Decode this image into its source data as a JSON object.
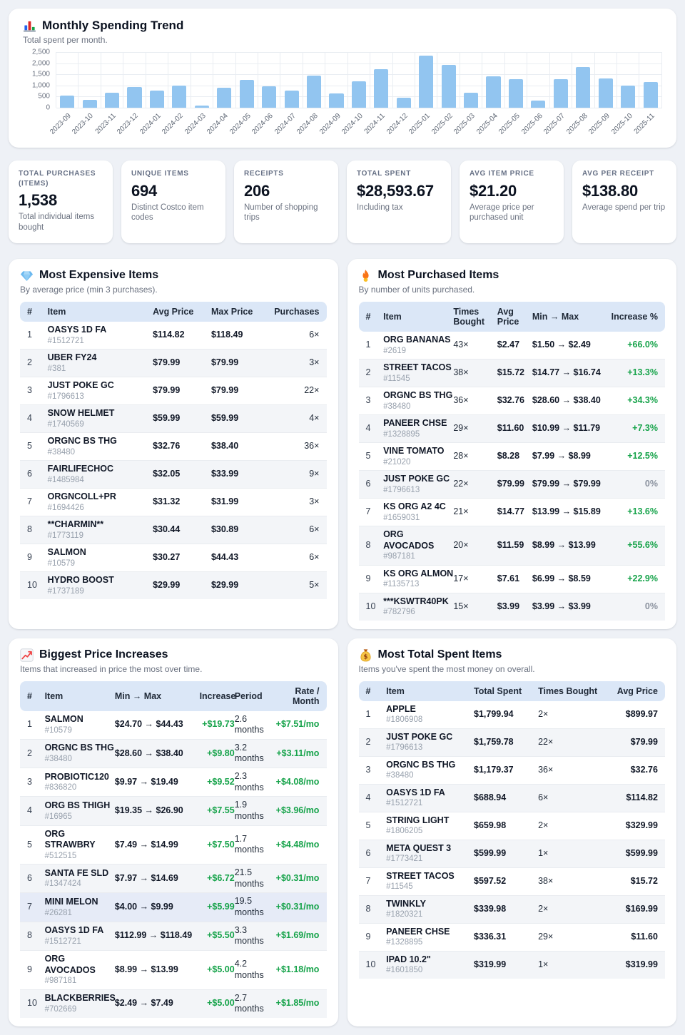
{
  "icons": {
    "chart": "bar-chart-icon",
    "expensive": "gem-icon",
    "purchased": "fire-icon",
    "increases": "chart-up-icon",
    "total": "money-bag-icon"
  },
  "colors": {
    "bar": "#92c5f0",
    "positive": "#16a34a",
    "neutral": "#8a919e",
    "header_bg": "#dbe7f7"
  },
  "chart_data": {
    "type": "bar",
    "title": "Monthly Spending Trend",
    "subtitle": "Total spent per month.",
    "x": [
      "2023-09",
      "2023-10",
      "2023-11",
      "2023-12",
      "2024-01",
      "2024-02",
      "2024-03",
      "2024-04",
      "2024-05",
      "2024-06",
      "2024-07",
      "2024-08",
      "2024-09",
      "2024-10",
      "2024-11",
      "2024-12",
      "2025-01",
      "2025-02",
      "2025-03",
      "2025-04",
      "2025-05",
      "2025-06",
      "2025-07",
      "2025-08",
      "2025-09",
      "2025-10",
      "2025-11"
    ],
    "values": [
      560,
      340,
      660,
      930,
      780,
      980,
      100,
      910,
      1240,
      950,
      780,
      1440,
      640,
      1190,
      1720,
      440,
      2350,
      1930,
      670,
      1420,
      1270,
      330,
      1290,
      1830,
      1330,
      1010,
      1170
    ],
    "xlabel": "",
    "ylabel": "",
    "ylim": [
      0,
      2500
    ],
    "yticks": [
      "2,500",
      "2,000",
      "1,500",
      "1,000",
      "500",
      "0"
    ],
    "grid": true,
    "legend": false,
    "bar_color": "#92c5f0"
  },
  "stats": [
    {
      "label": "TOTAL PURCHASES (ITEMS)",
      "value": "1,538",
      "desc": "Total individual items bought"
    },
    {
      "label": "UNIQUE ITEMS",
      "value": "694",
      "desc": "Distinct Costco item codes"
    },
    {
      "label": "RECEIPTS",
      "value": "206",
      "desc": "Number of shopping trips"
    },
    {
      "label": "TOTAL SPENT",
      "value": "$28,593.67",
      "desc": "Including tax"
    },
    {
      "label": "AVG ITEM PRICE",
      "value": "$21.20",
      "desc": "Average price per purchased unit"
    },
    {
      "label": "AVG PER RECEIPT",
      "value": "$138.80",
      "desc": "Average spend per trip"
    }
  ],
  "tables": {
    "expensive": {
      "title": "Most Expensive Items",
      "subtitle": "By average price (min 3 purchases).",
      "columns": [
        {
          "key": "rank",
          "label": "#",
          "kind": "rank",
          "align": "left"
        },
        {
          "key": "item",
          "label": "Item",
          "kind": "item",
          "align": "left"
        },
        {
          "key": "avg",
          "label": "Avg Price",
          "kind": "strong",
          "align": "left"
        },
        {
          "key": "max",
          "label": "Max Price",
          "kind": "strong",
          "align": "left"
        },
        {
          "key": "purchases",
          "label": "Purchases",
          "kind": "plain",
          "align": "right"
        }
      ],
      "rows": [
        {
          "rank": "1",
          "item": {
            "name": "OASYS 1D FA",
            "code": "#1512721"
          },
          "avg": "$114.82",
          "max": "$118.49",
          "purchases": "6×"
        },
        {
          "rank": "2",
          "item": {
            "name": "UBER FY24",
            "code": "#381"
          },
          "avg": "$79.99",
          "max": "$79.99",
          "purchases": "3×"
        },
        {
          "rank": "3",
          "item": {
            "name": "JUST POKE GC",
            "code": "#1796613"
          },
          "avg": "$79.99",
          "max": "$79.99",
          "purchases": "22×"
        },
        {
          "rank": "4",
          "item": {
            "name": "SNOW HELMET",
            "code": "#1740569"
          },
          "avg": "$59.99",
          "max": "$59.99",
          "purchases": "4×"
        },
        {
          "rank": "5",
          "item": {
            "name": "ORGNC BS THG",
            "code": "#38480"
          },
          "avg": "$32.76",
          "max": "$38.40",
          "purchases": "36×"
        },
        {
          "rank": "6",
          "item": {
            "name": "FAIRLIFECHOC",
            "code": "#1485984"
          },
          "avg": "$32.05",
          "max": "$33.99",
          "purchases": "9×"
        },
        {
          "rank": "7",
          "item": {
            "name": "ORGNCOLL+PR",
            "code": "#1694426"
          },
          "avg": "$31.32",
          "max": "$31.99",
          "purchases": "3×"
        },
        {
          "rank": "8",
          "item": {
            "name": "**CHARMIN**",
            "code": "#1773119"
          },
          "avg": "$30.44",
          "max": "$30.89",
          "purchases": "6×"
        },
        {
          "rank": "9",
          "item": {
            "name": "SALMON",
            "code": "#10579"
          },
          "avg": "$30.27",
          "max": "$44.43",
          "purchases": "6×"
        },
        {
          "rank": "10",
          "item": {
            "name": "HYDRO BOOST",
            "code": "#1737189"
          },
          "avg": "$29.99",
          "max": "$29.99",
          "purchases": "5×"
        }
      ]
    },
    "purchased": {
      "title": "Most Purchased Items",
      "subtitle": "By number of units purchased.",
      "columns": [
        {
          "key": "rank",
          "label": "#",
          "kind": "rank",
          "align": "left"
        },
        {
          "key": "item",
          "label": "Item",
          "kind": "item",
          "align": "left"
        },
        {
          "key": "times",
          "label": "Times Bought",
          "kind": "plain",
          "align": "left"
        },
        {
          "key": "avg",
          "label": "Avg Price",
          "kind": "strong",
          "align": "left"
        },
        {
          "key": "minmax",
          "label": "Min → Max",
          "kind": "strong",
          "align": "left"
        },
        {
          "key": "increase",
          "label": "Increase %",
          "kind": "delta",
          "align": "right"
        }
      ],
      "rows": [
        {
          "rank": "1",
          "item": {
            "name": "ORG BANANAS",
            "code": "#2619"
          },
          "times": "43×",
          "avg": "$2.47",
          "minmax": "$1.50 → $2.49",
          "increase": "+66.0%"
        },
        {
          "rank": "2",
          "item": {
            "name": "STREET TACOS",
            "code": "#11545"
          },
          "times": "38×",
          "avg": "$15.72",
          "minmax": "$14.77 → $16.74",
          "increase": "+13.3%"
        },
        {
          "rank": "3",
          "item": {
            "name": "ORGNC BS THG",
            "code": "#38480"
          },
          "times": "36×",
          "avg": "$32.76",
          "minmax": "$28.60 → $38.40",
          "increase": "+34.3%"
        },
        {
          "rank": "4",
          "item": {
            "name": "PANEER CHSE",
            "code": "#1328895"
          },
          "times": "29×",
          "avg": "$11.60",
          "minmax": "$10.99 → $11.79",
          "increase": "+7.3%"
        },
        {
          "rank": "5",
          "item": {
            "name": "VINE TOMATO",
            "code": "#21020"
          },
          "times": "28×",
          "avg": "$8.28",
          "minmax": "$7.99 → $8.99",
          "increase": "+12.5%"
        },
        {
          "rank": "6",
          "item": {
            "name": "JUST POKE GC",
            "code": "#1796613"
          },
          "times": "22×",
          "avg": "$79.99",
          "minmax": "$79.99 → $79.99",
          "increase": "0%"
        },
        {
          "rank": "7",
          "item": {
            "name": "KS ORG A2 4C",
            "code": "#1659031"
          },
          "times": "21×",
          "avg": "$14.77",
          "minmax": "$13.99 → $15.89",
          "increase": "+13.6%"
        },
        {
          "rank": "8",
          "item": {
            "name": "ORG AVOCADOS",
            "code": "#987181"
          },
          "times": "20×",
          "avg": "$11.59",
          "minmax": "$8.99 → $13.99",
          "increase": "+55.6%"
        },
        {
          "rank": "9",
          "item": {
            "name": "KS ORG ALMON",
            "code": "#1135713"
          },
          "times": "17×",
          "avg": "$7.61",
          "minmax": "$6.99 → $8.59",
          "increase": "+22.9%"
        },
        {
          "rank": "10",
          "item": {
            "name": "***KSWTR40PK",
            "code": "#782796"
          },
          "times": "15×",
          "avg": "$3.99",
          "minmax": "$3.99 → $3.99",
          "increase": "0%"
        }
      ]
    },
    "increases": {
      "title": "Biggest Price Increases",
      "subtitle": "Items that increased in price the most over time.",
      "columns": [
        {
          "key": "rank",
          "label": "#",
          "kind": "rank",
          "align": "left"
        },
        {
          "key": "item",
          "label": "Item",
          "kind": "item",
          "align": "left"
        },
        {
          "key": "minmax",
          "label": "Min → Max",
          "kind": "strong",
          "align": "left"
        },
        {
          "key": "increase",
          "label": "Increase",
          "kind": "green",
          "align": "right"
        },
        {
          "key": "period",
          "label": "Period",
          "kind": "plain",
          "align": "left"
        },
        {
          "key": "rate",
          "label": "Rate / Month",
          "kind": "green",
          "align": "right"
        }
      ],
      "rows": [
        {
          "rank": "1",
          "item": {
            "name": "SALMON",
            "code": "#10579"
          },
          "minmax": "$24.70 → $44.43",
          "increase": "+$19.73",
          "period": "2.6 months",
          "rate": "+$7.51/mo"
        },
        {
          "rank": "2",
          "item": {
            "name": "ORGNC BS THG",
            "code": "#38480"
          },
          "minmax": "$28.60 → $38.40",
          "increase": "+$9.80",
          "period": "3.2 months",
          "rate": "+$3.11/mo"
        },
        {
          "rank": "3",
          "item": {
            "name": "PROBIOTIC120",
            "code": "#836820"
          },
          "minmax": "$9.97 → $19.49",
          "increase": "+$9.52",
          "period": "2.3 months",
          "rate": "+$4.08/mo"
        },
        {
          "rank": "4",
          "item": {
            "name": "ORG BS THIGH",
            "code": "#16965"
          },
          "minmax": "$19.35 → $26.90",
          "increase": "+$7.55",
          "period": "1.9 months",
          "rate": "+$3.96/mo"
        },
        {
          "rank": "5",
          "item": {
            "name": "ORG STRAWBRY",
            "code": "#512515"
          },
          "minmax": "$7.49 → $14.99",
          "increase": "+$7.50",
          "period": "1.7 months",
          "rate": "+$4.48/mo"
        },
        {
          "rank": "6",
          "item": {
            "name": "SANTA FE SLD",
            "code": "#1347424"
          },
          "minmax": "$7.97 → $14.69",
          "increase": "+$6.72",
          "period": "21.5 months",
          "rate": "+$0.31/mo"
        },
        {
          "rank": "7",
          "item": {
            "name": "MINI MELON",
            "code": "#26281"
          },
          "minmax": "$4.00 → $9.99",
          "increase": "+$5.99",
          "period": "19.5 months",
          "rate": "+$0.31/mo",
          "highlight": true
        },
        {
          "rank": "8",
          "item": {
            "name": "OASYS 1D FA",
            "code": "#1512721"
          },
          "minmax": "$112.99 → $118.49",
          "increase": "+$5.50",
          "period": "3.3 months",
          "rate": "+$1.69/mo"
        },
        {
          "rank": "9",
          "item": {
            "name": "ORG AVOCADOS",
            "code": "#987181"
          },
          "minmax": "$8.99 → $13.99",
          "increase": "+$5.00",
          "period": "4.2 months",
          "rate": "+$1.18/mo"
        },
        {
          "rank": "10",
          "item": {
            "name": "BLACKBERRIES",
            "code": "#702669"
          },
          "minmax": "$2.49 → $7.49",
          "increase": "+$5.00",
          "period": "2.7 months",
          "rate": "+$1.85/mo"
        }
      ]
    },
    "total": {
      "title": "Most Total Spent Items",
      "subtitle": "Items you've spent the most money on overall.",
      "columns": [
        {
          "key": "rank",
          "label": "#",
          "kind": "rank",
          "align": "left"
        },
        {
          "key": "item",
          "label": "Item",
          "kind": "item",
          "align": "left"
        },
        {
          "key": "total",
          "label": "Total Spent",
          "kind": "strong",
          "align": "left"
        },
        {
          "key": "times",
          "label": "Times Bought",
          "kind": "plain",
          "align": "left"
        },
        {
          "key": "avg",
          "label": "Avg Price",
          "kind": "strong",
          "align": "right"
        }
      ],
      "rows": [
        {
          "rank": "1",
          "item": {
            "name": "APPLE",
            "code": "#1806908"
          },
          "total": "$1,799.94",
          "times": "2×",
          "avg": "$899.97"
        },
        {
          "rank": "2",
          "item": {
            "name": "JUST POKE GC",
            "code": "#1796613"
          },
          "total": "$1,759.78",
          "times": "22×",
          "avg": "$79.99"
        },
        {
          "rank": "3",
          "item": {
            "name": "ORGNC BS THG",
            "code": "#38480"
          },
          "total": "$1,179.37",
          "times": "36×",
          "avg": "$32.76"
        },
        {
          "rank": "4",
          "item": {
            "name": "OASYS 1D FA",
            "code": "#1512721"
          },
          "total": "$688.94",
          "times": "6×",
          "avg": "$114.82"
        },
        {
          "rank": "5",
          "item": {
            "name": "STRING LIGHT",
            "code": "#1806205"
          },
          "total": "$659.98",
          "times": "2×",
          "avg": "$329.99"
        },
        {
          "rank": "6",
          "item": {
            "name": "META QUEST 3",
            "code": "#1773421"
          },
          "total": "$599.99",
          "times": "1×",
          "avg": "$599.99"
        },
        {
          "rank": "7",
          "item": {
            "name": "STREET TACOS",
            "code": "#11545"
          },
          "total": "$597.52",
          "times": "38×",
          "avg": "$15.72"
        },
        {
          "rank": "8",
          "item": {
            "name": "TWINKLY",
            "code": "#1820321"
          },
          "total": "$339.98",
          "times": "2×",
          "avg": "$169.99"
        },
        {
          "rank": "9",
          "item": {
            "name": "PANEER CHSE",
            "code": "#1328895"
          },
          "total": "$336.31",
          "times": "29×",
          "avg": "$11.60"
        },
        {
          "rank": "10",
          "item": {
            "name": "IPAD 10.2\"",
            "code": "#1601850"
          },
          "total": "$319.99",
          "times": "1×",
          "avg": "$319.99"
        }
      ]
    }
  }
}
